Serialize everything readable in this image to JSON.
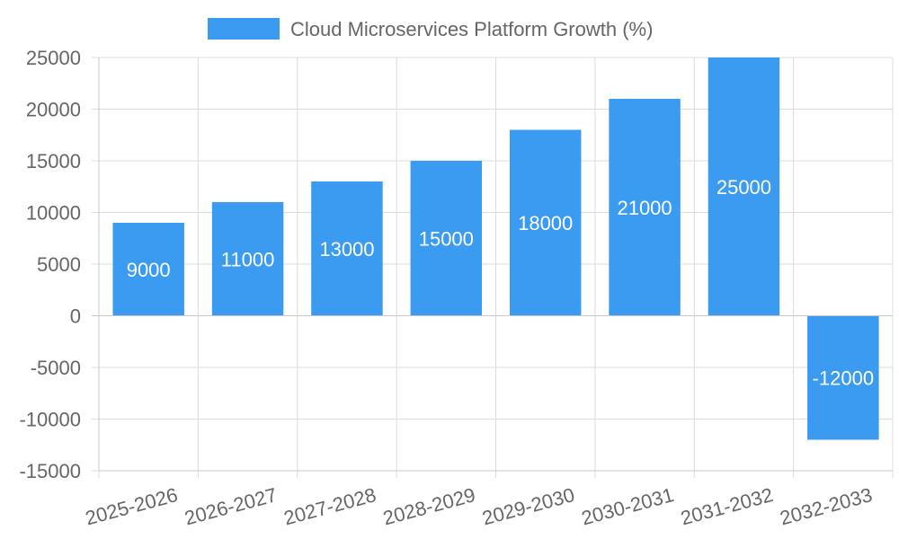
{
  "chart_data": {
    "type": "bar",
    "title": "",
    "xlabel": "",
    "ylabel": "",
    "categories": [
      "2025-2026",
      "2026-2027",
      "2027-2028",
      "2028-2029",
      "2029-2030",
      "2030-2031",
      "2031-2032",
      "2032-2033"
    ],
    "series": [
      {
        "name": "Cloud Microservices Platform Growth (%)",
        "values": [
          9000,
          11000,
          13000,
          15000,
          18000,
          21000,
          25000,
          -12000
        ],
        "color": "#3a9bf0"
      }
    ],
    "ylim": [
      -15000,
      25000
    ],
    "yticks": [
      25000,
      20000,
      15000,
      10000,
      5000,
      0,
      -5000,
      -10000,
      -15000
    ],
    "grid": true,
    "legend": "top-center",
    "data_labels": true
  }
}
